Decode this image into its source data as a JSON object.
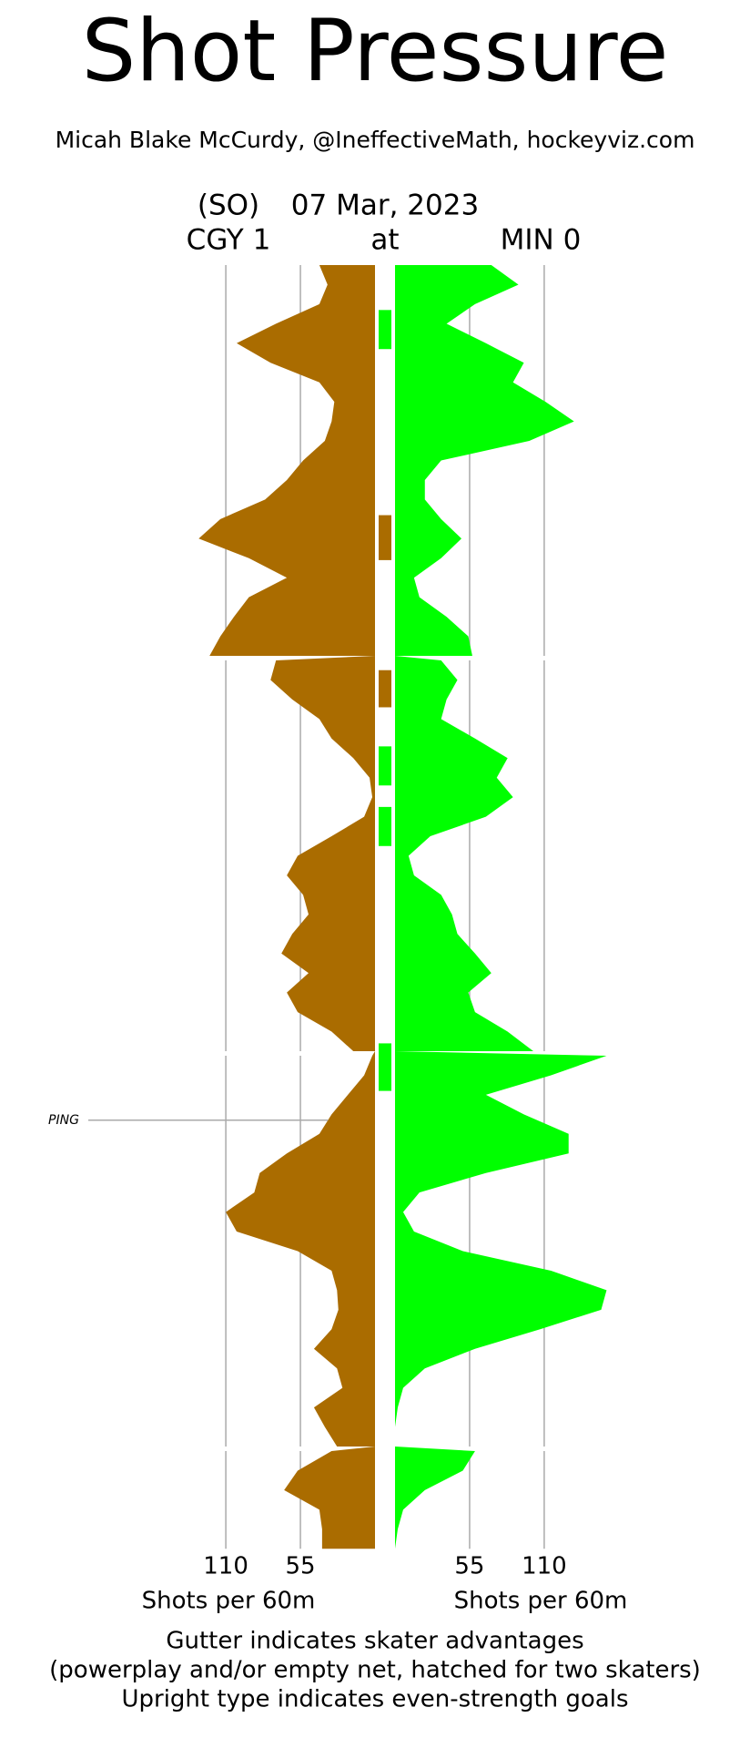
{
  "chart_data": {
    "type": "shot_pressure",
    "title": "Shot Pressure",
    "subtitle": "Micah Blake McCurdy, @IneffectiveMath, hockeyviz.com",
    "game_type": "(SO)",
    "date": "07 Mar, 2023",
    "away": "CGY 1",
    "at": "at",
    "home": "MIN 0",
    "xlabel": "Shots per 60m",
    "xlim": [
      0,
      160
    ],
    "xticks": [
      55,
      110
    ],
    "period_x": [
      [
        0,
        1,
        2,
        3,
        4,
        5,
        6,
        7,
        8,
        9,
        10,
        11,
        12,
        13,
        14,
        15,
        16,
        17,
        18,
        19,
        20
      ],
      [
        20,
        21,
        22,
        23,
        24,
        25,
        26,
        27,
        28,
        29,
        30,
        31,
        32,
        33,
        34,
        35,
        36,
        37,
        38,
        39,
        40
      ],
      [
        40,
        41,
        42,
        43,
        44,
        45,
        46,
        47,
        48,
        49,
        50,
        51,
        52,
        53,
        54,
        55,
        56,
        57,
        58,
        59,
        60
      ],
      [
        60,
        61,
        62,
        63,
        64,
        65
      ]
    ],
    "series": [
      {
        "name": "CGY",
        "color": "#aa6c00",
        "side": "left",
        "values": [
          [
            41,
            35,
            41,
            73,
            102,
            77,
            41,
            30,
            32,
            37,
            53,
            65,
            81,
            114,
            130,
            93,
            65,
            93,
            104,
            114,
            122
          ],
          [
            73,
            77,
            61,
            41,
            32,
            16,
            4,
            2,
            8,
            32,
            57,
            65,
            53,
            49,
            61,
            69,
            49,
            65,
            57,
            32,
            16
          ],
          [
            2,
            8,
            20,
            32,
            41,
            65,
            85,
            89,
            110,
            102,
            57,
            32,
            28,
            27,
            32,
            45,
            28,
            24,
            45,
            37,
            28
          ],
          [
            32,
            57,
            67,
            41,
            39,
            39
          ]
        ]
      },
      {
        "name": "MIN",
        "color": "#00ff00",
        "side": "right",
        "values": [
          [
            71,
            91,
            59,
            38,
            67,
            95,
            87,
            111,
            132,
            99,
            34,
            22,
            22,
            34,
            49,
            34,
            14,
            18,
            38,
            54,
            57
          ],
          [
            34,
            46,
            38,
            34,
            59,
            83,
            75,
            87,
            67,
            26,
            10,
            14,
            34,
            42,
            46,
            59,
            71,
            54,
            59,
            83,
            102
          ],
          [
            156,
            115,
            67,
            95,
            128,
            128,
            67,
            18,
            6,
            14,
            50,
            115,
            156,
            152,
            107,
            59,
            22,
            6,
            2,
            0,
            0
          ],
          [
            59,
            50,
            22,
            6,
            2,
            0
          ]
        ]
      }
    ],
    "advantages": [
      {
        "team": 1,
        "start": 2.3,
        "end": 4.3
      },
      {
        "team": 0,
        "start": 12.8,
        "end": 15.1
      },
      {
        "team": 0,
        "start": 20.5,
        "end": 22.4
      },
      {
        "team": 1,
        "start": 24.4,
        "end": 26.4
      },
      {
        "team": 1,
        "start": 27.5,
        "end": 29.5
      },
      {
        "team": 1,
        "start": 39.6,
        "end": 41.8
      }
    ],
    "goals": [
      {
        "label": "PING",
        "team": 0,
        "time": 43.3
      }
    ],
    "notes": [
      "Gutter indicates skater advantages",
      "(powerplay and/or empty net, hatched for two skaters)",
      "Upright type indicates even-strength goals"
    ]
  }
}
